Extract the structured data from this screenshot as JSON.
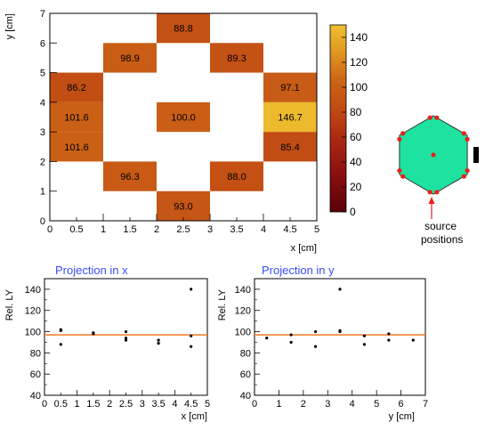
{
  "heatmap": {
    "xlabel": "x [cm]",
    "ylabel": "y [cm]",
    "xlim": [
      0,
      5
    ],
    "ylim": [
      0,
      7
    ],
    "x_ticks": [
      "0",
      "0.5",
      "1",
      "1.5",
      "2",
      "2.5",
      "3",
      "3.5",
      "4",
      "4.5",
      "5"
    ],
    "y_ticks": [
      "0",
      "1",
      "2",
      "3",
      "4",
      "5",
      "6",
      "7"
    ]
  },
  "colorbar": {
    "range": [
      0,
      150
    ],
    "ticks": [
      "0",
      "20",
      "40",
      "60",
      "80",
      "100",
      "120",
      "140"
    ]
  },
  "hexagon": {
    "fill": "#1ee3a0",
    "dot_color": "#e8201a",
    "label_line1": "source",
    "label_line2": "positions"
  },
  "projection_x": {
    "title": "Projection in x",
    "xlabel": "x [cm]",
    "ylabel": "Rel. LY",
    "x_ticks": [
      "0",
      "0.5",
      "1",
      "1.5",
      "2",
      "2.5",
      "3",
      "3.5",
      "4",
      "4.5",
      "5"
    ],
    "y_ticks": [
      "40",
      "60",
      "80",
      "100",
      "120",
      "140"
    ]
  },
  "projection_y": {
    "title": "Projection in y",
    "xlabel": "y [cm]",
    "ylabel": "Rel. LY",
    "x_ticks": [
      "0",
      "1",
      "2",
      "3",
      "4",
      "5",
      "6",
      "7"
    ],
    "y_ticks": [
      "40",
      "60",
      "80",
      "100",
      "120",
      "140"
    ]
  },
  "chart_data": [
    {
      "type": "heatmap",
      "xlabel": "x [cm]",
      "ylabel": "y [cm]",
      "xlim": [
        0,
        5
      ],
      "ylim": [
        0,
        7
      ],
      "zlim": [
        0,
        150
      ],
      "cells": [
        {
          "x": 2.5,
          "y": 6.5,
          "value": 88.8,
          "label": "88.8"
        },
        {
          "x": 1.5,
          "y": 5.5,
          "value": 98.9,
          "label": "98.9"
        },
        {
          "x": 3.5,
          "y": 5.5,
          "value": 89.3,
          "label": "89.3"
        },
        {
          "x": 0.5,
          "y": 4.5,
          "value": 86.2,
          "label": "86.2"
        },
        {
          "x": 4.5,
          "y": 4.5,
          "value": 97.1,
          "label": "97.1"
        },
        {
          "x": 0.5,
          "y": 3.5,
          "value": 101.6,
          "label": "101.6"
        },
        {
          "x": 2.5,
          "y": 3.5,
          "value": 100.0,
          "label": "100.0"
        },
        {
          "x": 4.5,
          "y": 3.5,
          "value": 146.7,
          "label": "146.7"
        },
        {
          "x": 0.5,
          "y": 2.5,
          "value": 101.6,
          "label": "101.6"
        },
        {
          "x": 4.5,
          "y": 2.5,
          "value": 85.4,
          "label": "85.4"
        },
        {
          "x": 1.5,
          "y": 1.5,
          "value": 96.3,
          "label": "96.3"
        },
        {
          "x": 3.5,
          "y": 1.5,
          "value": 88.0,
          "label": "88.0"
        },
        {
          "x": 2.5,
          "y": 0.5,
          "value": 93.0,
          "label": "93.0"
        }
      ]
    },
    {
      "type": "scatter",
      "title": "Projection in x",
      "xlabel": "x [cm]",
      "ylabel": "Rel. LY",
      "xlim": [
        0,
        5
      ],
      "ylim": [
        40,
        150
      ],
      "fit_line": 97,
      "fit_color": "#f07820",
      "points": [
        {
          "x": 0.5,
          "y": 102
        },
        {
          "x": 0.5,
          "y": 101
        },
        {
          "x": 0.5,
          "y": 88
        },
        {
          "x": 1.5,
          "y": 99
        },
        {
          "x": 1.5,
          "y": 98
        },
        {
          "x": 2.5,
          "y": 100
        },
        {
          "x": 2.5,
          "y": 94
        },
        {
          "x": 2.5,
          "y": 92
        },
        {
          "x": 3.5,
          "y": 92
        },
        {
          "x": 3.5,
          "y": 89
        },
        {
          "x": 4.5,
          "y": 140
        },
        {
          "x": 4.5,
          "y": 96
        },
        {
          "x": 4.5,
          "y": 86
        }
      ]
    },
    {
      "type": "scatter",
      "title": "Projection in y",
      "xlabel": "y [cm]",
      "ylabel": "Rel. LY",
      "xlim": [
        0,
        7
      ],
      "ylim": [
        40,
        150
      ],
      "fit_line": 97,
      "fit_color": "#f07820",
      "points": [
        {
          "x": 0.5,
          "y": 94
        },
        {
          "x": 1.5,
          "y": 97
        },
        {
          "x": 1.5,
          "y": 90
        },
        {
          "x": 2.5,
          "y": 100
        },
        {
          "x": 2.5,
          "y": 86
        },
        {
          "x": 3.5,
          "y": 140
        },
        {
          "x": 3.5,
          "y": 101
        },
        {
          "x": 3.5,
          "y": 100
        },
        {
          "x": 4.5,
          "y": 96
        },
        {
          "x": 4.5,
          "y": 88
        },
        {
          "x": 5.5,
          "y": 98
        },
        {
          "x": 5.5,
          "y": 92
        },
        {
          "x": 6.5,
          "y": 92
        }
      ]
    }
  ]
}
